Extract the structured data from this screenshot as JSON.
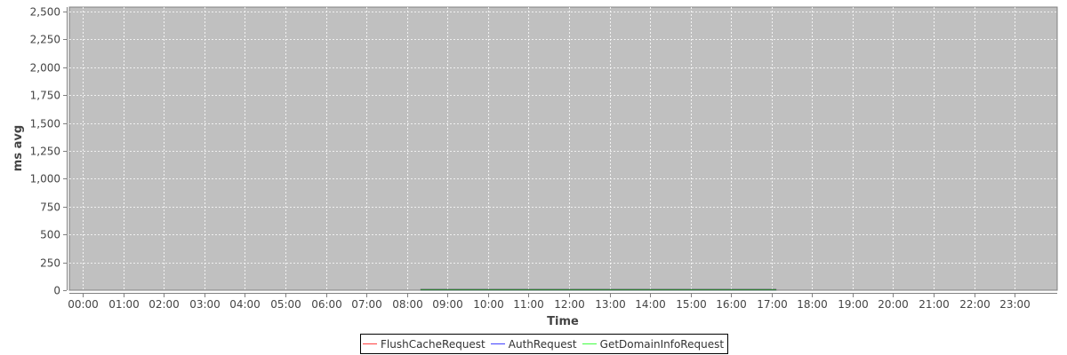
{
  "chart_data": {
    "type": "line",
    "title": "",
    "xlabel": "Time",
    "ylabel": "ms avg",
    "ylim": [
      0,
      2540
    ],
    "yticks": [
      "0",
      "250",
      "500",
      "750",
      "1,000",
      "1,250",
      "1,500",
      "1,750",
      "2,000",
      "2,250",
      "2,500"
    ],
    "ytick_values": [
      0,
      250,
      500,
      750,
      1000,
      1250,
      1500,
      1750,
      2000,
      2250,
      2500
    ],
    "xticks": [
      "00:00",
      "01:00",
      "02:00",
      "03:00",
      "04:00",
      "05:00",
      "06:00",
      "07:00",
      "08:00",
      "09:00",
      "10:00",
      "11:00",
      "12:00",
      "13:00",
      "14:00",
      "15:00",
      "16:00",
      "17:00",
      "18:00",
      "19:00",
      "20:00",
      "21:00",
      "22:00",
      "23:00"
    ],
    "grid": true,
    "legend_placement": "bottom",
    "plot_background": "#c0c0c0",
    "series": [
      {
        "name": "FlushCacheRequest",
        "color": "#ff4040",
        "x": [
          "08:20",
          "17:07"
        ],
        "y": [
          0,
          0
        ]
      },
      {
        "name": "AuthRequest",
        "color": "#4040ff",
        "x": [
          "08:20",
          "17:07"
        ],
        "y": [
          0,
          0
        ]
      },
      {
        "name": "GetDomainInfoRequest",
        "color": "#40ff40",
        "x": [
          "08:20",
          "17:07"
        ],
        "y": [
          0,
          0
        ]
      }
    ]
  }
}
